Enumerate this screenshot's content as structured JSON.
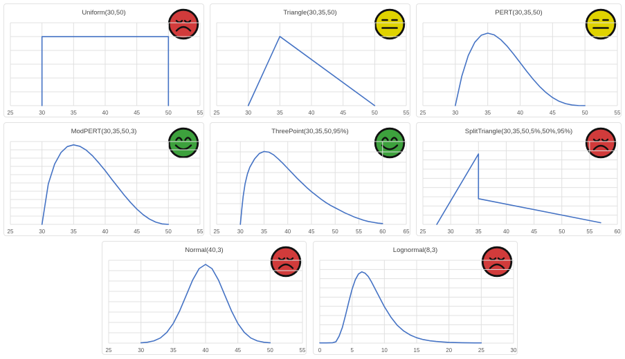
{
  "page": {
    "background": "#FFFFFF",
    "description_note": "Grid of eight probability-distribution preview charts, each with a colored smiley status icon"
  },
  "colors": {
    "curve": "#4472C4",
    "gridline": "#E0E0E0",
    "panel_border": "#E2E2E2",
    "title_text": "#444444",
    "tick_text": "#595959",
    "face_red": "#D13B3B",
    "face_yellow": "#E0D300",
    "face_green": "#3DA13D",
    "face_outline": "#111111"
  },
  "chart_data": [
    {
      "type": "line",
      "title": "Uniform(30,50)",
      "face": "red-sad",
      "xlim": [
        25,
        55
      ],
      "x_ticks": [
        25,
        30,
        35,
        40,
        45,
        50,
        55
      ],
      "grid_rows": 6,
      "grid": true,
      "legend_position": "none",
      "ylabel": "",
      "xlabel": "",
      "y_unit": "relative density (no y-axis labels shown)",
      "series": [
        {
          "name": "pdf",
          "points": [
            [
              30,
              0
            ],
            [
              30,
              0.833
            ],
            [
              50,
              0.833
            ],
            [
              50,
              0
            ]
          ]
        }
      ]
    },
    {
      "type": "line",
      "title": "Triangle(30,35,50)",
      "face": "yellow-neutral",
      "xlim": [
        25,
        55
      ],
      "x_ticks": [
        25,
        30,
        35,
        40,
        45,
        50,
        55
      ],
      "grid_rows": 6,
      "grid": true,
      "legend_position": "none",
      "ylabel": "",
      "xlabel": "",
      "y_unit": "relative density (no y-axis labels shown)",
      "series": [
        {
          "name": "pdf",
          "points": [
            [
              30,
              0
            ],
            [
              35,
              0.835
            ],
            [
              50,
              0
            ]
          ]
        }
      ]
    },
    {
      "type": "line",
      "title": "PERT(30,35,50)",
      "face": "yellow-neutral",
      "xlim": [
        25,
        55
      ],
      "x_ticks": [
        25,
        30,
        35,
        40,
        45,
        50,
        55
      ],
      "grid_rows": 6,
      "grid": true,
      "legend_position": "none",
      "ylabel": "",
      "xlabel": "",
      "y_unit": "relative density (no y-axis labels shown)",
      "series": [
        {
          "name": "pdf",
          "points": [
            [
              30,
              0
            ],
            [
              31,
              0.355
            ],
            [
              32,
              0.605
            ],
            [
              33,
              0.764
            ],
            [
              34,
              0.85
            ],
            [
              35,
              0.875
            ],
            [
              36,
              0.854
            ],
            [
              37,
              0.797
            ],
            [
              38,
              0.717
            ],
            [
              39,
              0.621
            ],
            [
              40,
              0.519
            ],
            [
              41,
              0.416
            ],
            [
              42,
              0.319
            ],
            [
              43,
              0.231
            ],
            [
              44,
              0.157
            ],
            [
              45,
              0.097
            ],
            [
              46,
              0.053
            ],
            [
              47,
              0.024
            ],
            [
              48,
              0.008
            ],
            [
              49,
              0.001
            ],
            [
              50,
              0
            ]
          ]
        }
      ]
    },
    {
      "type": "line",
      "title": "ModPERT(30,35,50,3)",
      "face": "green-happy",
      "xlim": [
        25,
        55
      ],
      "x_ticks": [
        25,
        30,
        35,
        40,
        45,
        50,
        55
      ],
      "grid_rows": 10,
      "grid": true,
      "legend_position": "none",
      "ylabel": "",
      "xlabel": "",
      "y_unit": "relative density (no y-axis labels shown)",
      "series": [
        {
          "name": "pdf",
          "points": [
            [
              30,
              0
            ],
            [
              31,
              0.489
            ],
            [
              32,
              0.728
            ],
            [
              33,
              0.867
            ],
            [
              34,
              0.939
            ],
            [
              35,
              0.96
            ],
            [
              36,
              0.942
            ],
            [
              37,
              0.896
            ],
            [
              38,
              0.827
            ],
            [
              39,
              0.741
            ],
            [
              40,
              0.649
            ],
            [
              41,
              0.548
            ],
            [
              42,
              0.451
            ],
            [
              43,
              0.354
            ],
            [
              44,
              0.265
            ],
            [
              45,
              0.185
            ],
            [
              46,
              0.117
            ],
            [
              47,
              0.064
            ],
            [
              48,
              0.027
            ],
            [
              49,
              0.006
            ],
            [
              50,
              0
            ]
          ]
        }
      ]
    },
    {
      "type": "line",
      "title": "ThreePoint(30,35,50,95%)",
      "face": "green-happy",
      "xlim": [
        25,
        65
      ],
      "x_ticks": [
        25,
        30,
        35,
        40,
        45,
        50,
        55,
        60,
        65
      ],
      "grid_rows": 8,
      "grid": true,
      "legend_position": "none",
      "ylabel": "",
      "xlabel": "",
      "y_unit": "relative density (no y-axis labels shown)",
      "series": [
        {
          "name": "pdf",
          "points": [
            [
              30,
              0
            ],
            [
              30.3,
              0.18
            ],
            [
              30.6,
              0.34
            ],
            [
              31,
              0.49
            ],
            [
              31.5,
              0.61
            ],
            [
              32,
              0.69
            ],
            [
              33,
              0.79
            ],
            [
              34,
              0.855
            ],
            [
              35,
              0.88
            ],
            [
              36,
              0.872
            ],
            [
              37,
              0.84
            ],
            [
              38,
              0.79
            ],
            [
              39,
              0.735
            ],
            [
              40,
              0.675
            ],
            [
              41,
              0.615
            ],
            [
              42,
              0.555
            ],
            [
              43,
              0.5
            ],
            [
              44,
              0.445
            ],
            [
              45,
              0.395
            ],
            [
              46,
              0.35
            ],
            [
              47,
              0.305
            ],
            [
              48,
              0.265
            ],
            [
              49,
              0.23
            ],
            [
              50,
              0.2
            ],
            [
              51,
              0.17
            ],
            [
              52,
              0.14
            ],
            [
              53,
              0.115
            ],
            [
              54,
              0.09
            ],
            [
              55,
              0.07
            ],
            [
              56,
              0.05
            ],
            [
              57,
              0.035
            ],
            [
              58,
              0.025
            ],
            [
              59,
              0.015
            ],
            [
              60,
              0.01
            ]
          ]
        }
      ]
    },
    {
      "type": "line",
      "title": "SplitTriangle(30,35,50,5%,50%,95%)",
      "face": "red-sad",
      "xlim": [
        25,
        60
      ],
      "x_ticks": [
        25,
        30,
        35,
        40,
        45,
        50,
        55,
        60
      ],
      "grid_rows": 9,
      "grid": true,
      "legend_position": "none",
      "ylabel": "",
      "xlabel": "",
      "y_unit": "relative density (no y-axis labels shown)",
      "series": [
        {
          "name": "pdf",
          "points": [
            [
              27.5,
              0
            ],
            [
              35,
              0.85
            ],
            [
              35,
              0.31
            ],
            [
              57,
              0.02
            ]
          ]
        }
      ]
    },
    {
      "type": "line",
      "title": "Normal(40,3)",
      "face": "red-sad",
      "xlim": [
        25,
        55
      ],
      "x_ticks": [
        25,
        30,
        35,
        40,
        45,
        50,
        55
      ],
      "grid_rows": 8,
      "grid": true,
      "legend_position": "none",
      "ylabel": "",
      "xlabel": "",
      "y_unit": "relative density (no y-axis labels shown)",
      "series": [
        {
          "name": "pdf",
          "points": [
            [
              30,
              0.004
            ],
            [
              31,
              0.011
            ],
            [
              32,
              0.027
            ],
            [
              33,
              0.062
            ],
            [
              34,
              0.129
            ],
            [
              35,
              0.237
            ],
            [
              36,
              0.391
            ],
            [
              37,
              0.576
            ],
            [
              38,
              0.761
            ],
            [
              39,
              0.899
            ],
            [
              40,
              0.95
            ],
            [
              41,
              0.899
            ],
            [
              42,
              0.761
            ],
            [
              43,
              0.576
            ],
            [
              44,
              0.391
            ],
            [
              45,
              0.237
            ],
            [
              46,
              0.129
            ],
            [
              47,
              0.062
            ],
            [
              48,
              0.027
            ],
            [
              49,
              0.011
            ],
            [
              50,
              0.004
            ]
          ]
        }
      ]
    },
    {
      "type": "line",
      "title": "Lognormal(8,3)",
      "face": "red-sad",
      "xlim": [
        0,
        30
      ],
      "x_ticks": [
        0,
        5,
        10,
        15,
        20,
        25,
        30
      ],
      "grid_rows": 9,
      "grid": true,
      "legend_position": "none",
      "ylabel": "",
      "xlabel": "",
      "y_unit": "relative density (no y-axis labels shown)",
      "series": [
        {
          "name": "pdf",
          "points": [
            [
              0,
              0.003
            ],
            [
              1,
              0.003
            ],
            [
              2,
              0.005
            ],
            [
              2.5,
              0.016
            ],
            [
              3,
              0.085
            ],
            [
              3.5,
              0.19
            ],
            [
              4,
              0.34
            ],
            [
              4.5,
              0.5
            ],
            [
              5,
              0.65
            ],
            [
              5.5,
              0.765
            ],
            [
              6,
              0.835
            ],
            [
              6.5,
              0.86
            ],
            [
              7,
              0.845
            ],
            [
              7.5,
              0.805
            ],
            [
              8,
              0.74
            ],
            [
              9,
              0.59
            ],
            [
              10,
              0.44
            ],
            [
              11,
              0.315
            ],
            [
              12,
              0.215
            ],
            [
              13,
              0.146
            ],
            [
              14,
              0.098
            ],
            [
              15,
              0.065
            ],
            [
              16,
              0.043
            ],
            [
              17,
              0.029
            ],
            [
              18,
              0.02
            ],
            [
              19,
              0.014
            ],
            [
              20,
              0.009
            ],
            [
              21,
              0.007
            ],
            [
              22,
              0.005
            ],
            [
              23,
              0.004
            ],
            [
              24,
              0.003
            ],
            [
              25,
              0.003
            ]
          ]
        }
      ]
    }
  ]
}
